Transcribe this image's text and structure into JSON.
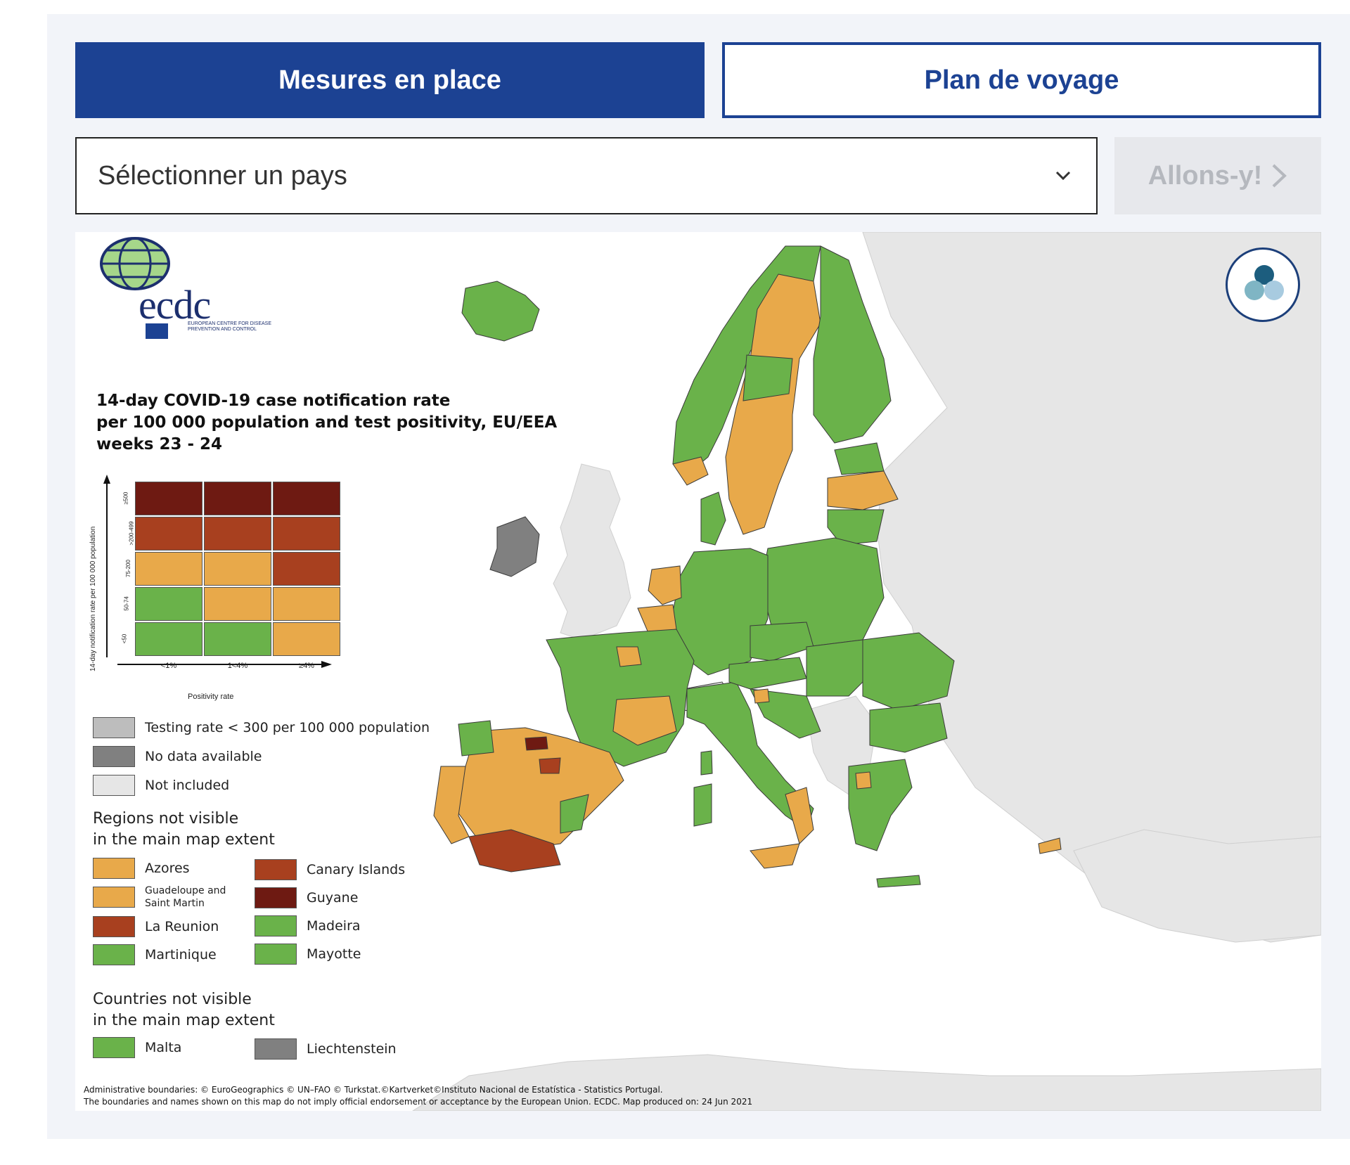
{
  "tabs": [
    {
      "label": "Mesures en place",
      "active": true
    },
    {
      "label": "Plan de voyage",
      "active": false
    }
  ],
  "country_select": {
    "value": "Sélectionner un pays"
  },
  "go_button": {
    "label": "Allons-y!"
  },
  "logo": {
    "text": "ecdc",
    "subtext": "EUROPEAN CENTRE FOR DISEASE PREVENTION AND CONTROL"
  },
  "map": {
    "title_lines": [
      "14-day COVID-19 case notification rate",
      "per 100 000 population and test positivity, EU/EEA",
      "weeks 23 - 24"
    ],
    "matrix": {
      "y_axis_label": "14-day notification rate per 100 000 population",
      "x_axis_label": "Positivity rate",
      "row_labels": [
        "≥500",
        ">200-499",
        "75-200",
        "50-74",
        "<50"
      ],
      "col_labels": [
        "<1%",
        "1<4%",
        "≥4%"
      ],
      "cells": [
        [
          "#6e1a12",
          "#6e1a12",
          "#6e1a12"
        ],
        [
          "#a8401f",
          "#a8401f",
          "#a8401f"
        ],
        [
          "#e8a94a",
          "#e8a94a",
          "#a8401f"
        ],
        [
          "#6ab24a",
          "#e8a94a",
          "#e8a94a"
        ],
        [
          "#6ab24a",
          "#6ab24a",
          "#e8a94a"
        ]
      ]
    },
    "legend_basic": [
      {
        "label": "Testing rate < 300 per 100 000 population",
        "color": "#bdbdbd"
      },
      {
        "label": "No data available",
        "color": "#808080"
      },
      {
        "label": "Not included",
        "color": "#e6e6e6"
      }
    ],
    "regions_heading": [
      "Regions not visible",
      "in the main map extent"
    ],
    "regions": [
      {
        "label": "Azores",
        "color": "#e8a94a"
      },
      {
        "label": "Canary Islands",
        "color": "#a8401f"
      },
      {
        "label": "Guadeloupe and Saint Martin",
        "color": "#e8a94a"
      },
      {
        "label": "Guyane",
        "color": "#6e1a12"
      },
      {
        "label": "La Reunion",
        "color": "#a8401f"
      },
      {
        "label": "Madeira",
        "color": "#6ab24a"
      },
      {
        "label": "Martinique",
        "color": "#6ab24a"
      },
      {
        "label": "Mayotte",
        "color": "#6ab24a"
      }
    ],
    "countries_heading": [
      "Countries not visible",
      "in the main map extent"
    ],
    "countries": [
      {
        "label": "Malta",
        "color": "#6ab24a"
      },
      {
        "label": "Liechtenstein",
        "color": "#808080"
      }
    ],
    "credits": [
      "Administrative boundaries: © EuroGeographics © UN–FAO © Turkstat.©Kartverket©Instituto Nacional de Estatística - Statistics Portugal.",
      "The boundaries and names shown on this map do not imply official endorsement or acceptance by the European Union. ECDC. Map produced on: 24 Jun 2021"
    ],
    "colors": {
      "green": "#6ab24a",
      "orange": "#e8a94a",
      "red": "#a8401f",
      "darkred": "#6e1a12",
      "nodata": "#808080",
      "excluded": "#e6e6e6",
      "border": "#3a3a3a"
    }
  }
}
